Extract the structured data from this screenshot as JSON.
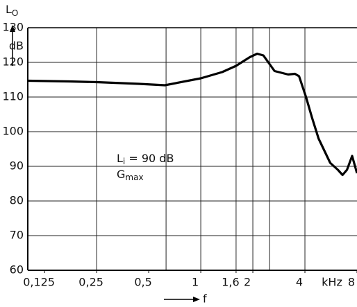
{
  "chart_data": {
    "type": "line",
    "y_label": {
      "main": "L",
      "sub": "O"
    },
    "y_unit": "dB",
    "x_label": "f",
    "x_unit": "kHz",
    "annotation": {
      "l1_main": "L",
      "l1_sub": "i",
      "l1_rest": " = 90 dB",
      "l2_main": "G",
      "l2_sub": "max"
    },
    "xscale": "log",
    "xlim": [
      0.1,
      8
    ],
    "ylim": [
      60,
      130
    ],
    "yticks": [
      60,
      70,
      80,
      90,
      100,
      110,
      120,
      130
    ],
    "xticks": [
      {
        "value": 0.125,
        "label": "0,125"
      },
      {
        "value": 0.25,
        "label": "0,25"
      },
      {
        "value": 0.5,
        "label": "0,5"
      },
      1,
      {
        "value": 1.6,
        "label": "1,6"
      },
      2,
      4,
      8
    ],
    "xgrid": [
      0.25,
      0.63,
      1,
      1.6,
      2,
      2.5,
      4
    ],
    "grid": true,
    "series": [
      {
        "color": "#000000",
        "x": [
          0.1,
          0.174,
          0.25,
          0.44,
          0.62,
          1.0,
          1.33,
          1.6,
          1.92,
          2.12,
          2.3,
          2.67,
          3.2,
          3.5,
          3.7,
          4.06,
          4.4,
          4.8,
          5.6,
          6.2,
          6.6,
          7.0,
          7.5,
          8
        ],
        "values": [
          114.7,
          114.5,
          114.3,
          113.8,
          113.4,
          115.4,
          117.2,
          119,
          121.5,
          122.5,
          122,
          117.5,
          116.5,
          116.7,
          116,
          110,
          104,
          98,
          91,
          89,
          87.5,
          89,
          93,
          88
        ]
      }
    ]
  }
}
